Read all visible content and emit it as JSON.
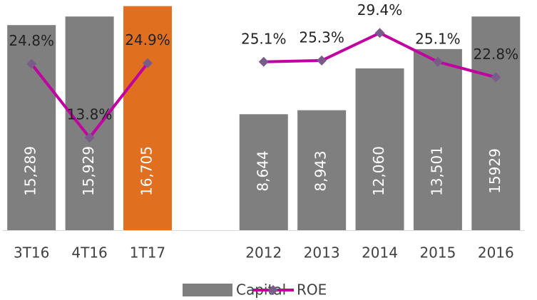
{
  "chart_data": {
    "type": "bar-line",
    "categories": [
      "3T16",
      "4T16",
      "1T17",
      null,
      "2012",
      "2013",
      "2014",
      "2015",
      "2016"
    ],
    "series": [
      {
        "name": "Capital",
        "type": "bar",
        "color": "#7f7f7f",
        "colors": [
          "#7f7f7f",
          "#7f7f7f",
          "#e07020",
          null,
          "#7f7f7f",
          "#7f7f7f",
          "#7f7f7f",
          "#7f7f7f",
          "#7f7f7f"
        ],
        "values": [
          15289,
          15929,
          16705,
          null,
          8644,
          8943,
          12060,
          13501,
          15929
        ],
        "value_labels": [
          "15,289",
          "15,929",
          "16,705",
          null,
          "8,644",
          "8,943",
          "12,060",
          "13,501",
          "15929"
        ]
      },
      {
        "name": "ROE",
        "type": "line",
        "axis": "y2",
        "color": "#c000a0",
        "marker_color": "#7a5c8a",
        "values": [
          24.8,
          13.8,
          24.9,
          null,
          25.1,
          25.3,
          29.4,
          25.1,
          22.8
        ],
        "value_labels": [
          "24.8%",
          "13.8%",
          "24.9%",
          null,
          "25.1%",
          "25.3%",
          "29.4%",
          "25.1%",
          "22.8%"
        ]
      }
    ],
    "ylim": [
      0,
      17000
    ],
    "y2lim": [
      0,
      34
    ],
    "legend": "bottom"
  }
}
